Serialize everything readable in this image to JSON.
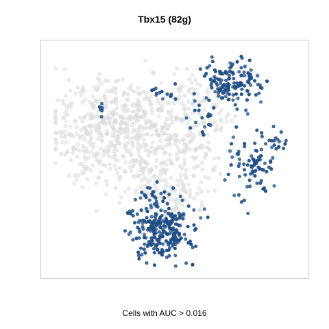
{
  "title": "Tbx15 (82g)",
  "caption": "Cells with AUC > 0.016",
  "colors": {
    "background_cells": "#dcdcdc",
    "active_cells": "#1f4e86",
    "frame": "#c8c8c8"
  },
  "chart_data": {
    "type": "scatter",
    "title": "Tbx15 (82g)",
    "xlabel": "Cells with AUC > 0.016",
    "ylabel": "",
    "axes_shown": false,
    "grid": false,
    "legend": "none",
    "xlim": [
      0,
      100
    ],
    "ylim": [
      0,
      100
    ],
    "series": [
      {
        "name": "",
        "role": "background",
        "color": "#dcdcdc",
        "clusters": [
          {
            "cx": 20,
            "cy": 60,
            "sx": 10,
            "sy": 13,
            "n": 200
          },
          {
            "cx": 33,
            "cy": 65,
            "sx": 10,
            "sy": 10,
            "n": 200
          },
          {
            "cx": 28,
            "cy": 72,
            "sx": 13,
            "sy": 6,
            "n": 100
          },
          {
            "cx": 55,
            "cy": 60,
            "sx": 8,
            "sy": 11,
            "n": 150
          },
          {
            "cx": 48,
            "cy": 40,
            "sx": 8,
            "sy": 8,
            "n": 90
          },
          {
            "cx": 57,
            "cy": 82,
            "sx": 5,
            "sy": 5,
            "n": 30
          },
          {
            "cx": 35,
            "cy": 48,
            "sx": 8,
            "sy": 5,
            "n": 50
          },
          {
            "cx": 67,
            "cy": 68,
            "sx": 3,
            "sy": 3,
            "n": 15
          },
          {
            "cx": 48,
            "cy": 30,
            "sx": 4,
            "sy": 4,
            "n": 20
          }
        ]
      },
      {
        "name": "",
        "role": "AUC > 0.016",
        "color": "#1f4e86",
        "clusters": [
          {
            "cx": 72,
            "cy": 84,
            "sx": 6,
            "sy": 5,
            "n": 140
          },
          {
            "cx": 46,
            "cy": 80,
            "sx": 2.5,
            "sy": 3,
            "n": 14
          },
          {
            "cx": 61,
            "cy": 69,
            "sx": 3,
            "sy": 4,
            "n": 18
          },
          {
            "cx": 80,
            "cy": 48,
            "sx": 6,
            "sy": 7,
            "n": 80
          },
          {
            "cx": 89,
            "cy": 58,
            "sx": 3,
            "sy": 2,
            "n": 16
          },
          {
            "cx": 45,
            "cy": 20,
            "sx": 6,
            "sy": 6,
            "n": 240
          },
          {
            "cx": 41,
            "cy": 36,
            "sx": 4,
            "sy": 3,
            "n": 20
          },
          {
            "cx": 37,
            "cy": 12,
            "sx": 2,
            "sy": 3,
            "n": 8
          },
          {
            "cx": 21,
            "cy": 73,
            "sx": 1,
            "sy": 1.5,
            "n": 6
          },
          {
            "cx": 32,
            "cy": 28,
            "sx": 1,
            "sy": 2,
            "n": 5
          }
        ]
      }
    ]
  }
}
